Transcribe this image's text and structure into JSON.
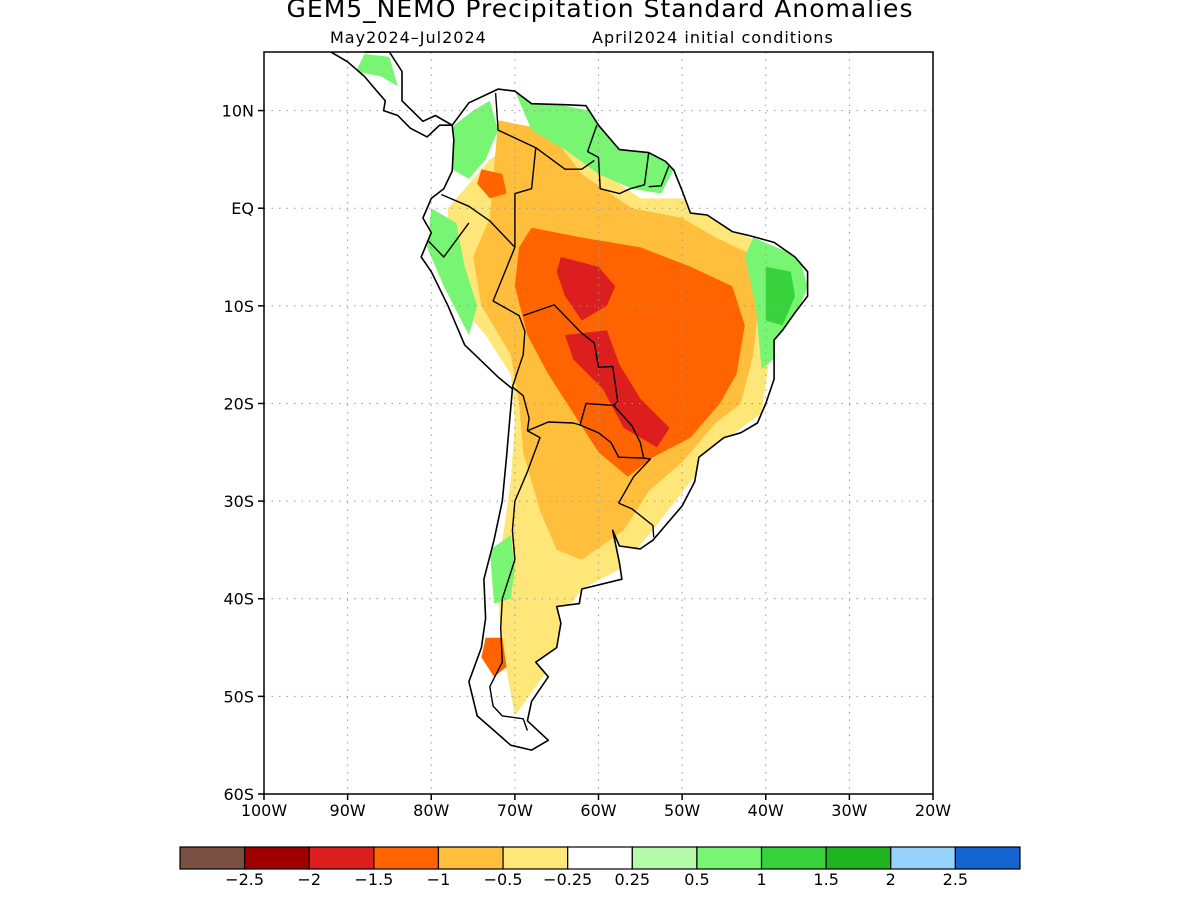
{
  "title": "GEM5_NEMO Precipitation Standard Anomalies",
  "subtitle_left": "May2024–Jul2024",
  "subtitle_right": "April2024 initial conditions",
  "lat_ticks": [
    {
      "label": "10N",
      "lat": 10
    },
    {
      "label": "EQ",
      "lat": 0
    },
    {
      "label": "10S",
      "lat": -10
    },
    {
      "label": "20S",
      "lat": -20
    },
    {
      "label": "30S",
      "lat": -30
    },
    {
      "label": "40S",
      "lat": -40
    },
    {
      "label": "50S",
      "lat": -50
    },
    {
      "label": "60S",
      "lat": -60
    }
  ],
  "lon_ticks": [
    {
      "label": "100W",
      "lon": -100
    },
    {
      "label": "90W",
      "lon": -90
    },
    {
      "label": "80W",
      "lon": -80
    },
    {
      "label": "70W",
      "lon": -70
    },
    {
      "label": "60W",
      "lon": -60
    },
    {
      "label": "50W",
      "lon": -50
    },
    {
      "label": "40W",
      "lon": -40
    },
    {
      "label": "30W",
      "lon": -30
    },
    {
      "label": "20W",
      "lon": -20
    }
  ],
  "extent": {
    "lon_min": -100,
    "lon_max": -20,
    "lat_min": -60,
    "lat_max": 16
  },
  "colorbar": {
    "colors": [
      "#7a5042",
      "#a00000",
      "#dc1e1e",
      "#ff6400",
      "#ffbe3c",
      "#ffe678",
      "#ffffff",
      "#b4faaa",
      "#78f573",
      "#37d23c",
      "#1eb41e",
      "#96d2fa",
      "#1464d2"
    ],
    "labels": [
      "−2.5",
      "−2",
      "−1.5",
      "−1",
      "−0.5",
      "−0.25",
      "0.25",
      "0.5",
      "1",
      "1.5",
      "2",
      "2.5"
    ]
  },
  "continent_outline": [
    [
      -77.5,
      8.5
    ],
    [
      -75.5,
      10.8
    ],
    [
      -72,
      12.2
    ],
    [
      -70,
      12
    ],
    [
      -68,
      10.7
    ],
    [
      -64,
      10.6
    ],
    [
      -61.5,
      10.5
    ],
    [
      -60,
      8.5
    ],
    [
      -57.5,
      6
    ],
    [
      -54,
      5.7
    ],
    [
      -52,
      4.8
    ],
    [
      -51,
      3.9
    ],
    [
      -50,
      1.8
    ],
    [
      -49,
      -0.5
    ],
    [
      -47,
      -0.7
    ],
    [
      -44,
      -2.4
    ],
    [
      -42,
      -2.8
    ],
    [
      -39,
      -3.5
    ],
    [
      -36.5,
      -5
    ],
    [
      -35,
      -6.5
    ],
    [
      -35,
      -9
    ],
    [
      -36.5,
      -10.7
    ],
    [
      -38,
      -12.5
    ],
    [
      -39,
      -13.5
    ],
    [
      -39,
      -17.5
    ],
    [
      -40,
      -20
    ],
    [
      -41,
      -22
    ],
    [
      -43,
      -23
    ],
    [
      -45,
      -23.5
    ],
    [
      -48,
      -25.5
    ],
    [
      -48.5,
      -28
    ],
    [
      -50,
      -30.5
    ],
    [
      -52,
      -32.5
    ],
    [
      -53.5,
      -34
    ],
    [
      -55,
      -34.9
    ],
    [
      -57.5,
      -34.6
    ],
    [
      -58.3,
      -33
    ],
    [
      -57.5,
      -36.3
    ],
    [
      -57.2,
      -38
    ],
    [
      -62,
      -39
    ],
    [
      -62.3,
      -40.5
    ],
    [
      -65,
      -40.8
    ],
    [
      -64.5,
      -42.5
    ],
    [
      -65,
      -45
    ],
    [
      -67.5,
      -46.5
    ],
    [
      -66,
      -48
    ],
    [
      -68,
      -50.5
    ],
    [
      -68.5,
      -52.5
    ],
    [
      -66,
      -54.5
    ],
    [
      -68,
      -55.5
    ],
    [
      -70.5,
      -55
    ],
    [
      -72.5,
      -53.5
    ],
    [
      -74.5,
      -52
    ],
    [
      -75.5,
      -48.5
    ],
    [
      -74,
      -45
    ],
    [
      -73.5,
      -42
    ],
    [
      -73.7,
      -38
    ],
    [
      -72.5,
      -34
    ],
    [
      -71.5,
      -30
    ],
    [
      -71,
      -25.5
    ],
    [
      -70.3,
      -18.5
    ],
    [
      -72,
      -17.3
    ],
    [
      -76,
      -14
    ],
    [
      -78,
      -10
    ],
    [
      -80,
      -6.5
    ],
    [
      -81.2,
      -5
    ],
    [
      -80,
      -2.5
    ],
    [
      -81,
      -1
    ],
    [
      -80,
      1
    ],
    [
      -78.5,
      2
    ],
    [
      -77.5,
      3.8
    ],
    [
      -77.3,
      7
    ],
    [
      -77.5,
      8.5
    ]
  ],
  "central_america_outline": [
    [
      -92,
      16
    ],
    [
      -90,
      15
    ],
    [
      -88,
      13.5
    ],
    [
      -86.5,
      12
    ],
    [
      -85.5,
      11
    ],
    [
      -85.7,
      10
    ],
    [
      -84,
      9.5
    ],
    [
      -82.5,
      8.2
    ],
    [
      -80.5,
      7.3
    ],
    [
      -79,
      8.5
    ],
    [
      -77.5,
      8.5
    ],
    [
      -79.5,
      9.5
    ],
    [
      -81,
      8.9
    ],
    [
      -83.5,
      11
    ],
    [
      -83.5,
      14
    ],
    [
      -85,
      16
    ],
    [
      -88,
      16
    ]
  ],
  "country_borders": [
    [
      [
        -72.3,
        11.8
      ],
      [
        -72,
        8
      ],
      [
        -67.5,
        6.2
      ],
      [
        -68,
        2
      ],
      [
        -70,
        1.5
      ],
      [
        -70,
        -0.2
      ],
      [
        -70,
        -4
      ]
    ],
    [
      [
        -78.8,
        1.4
      ],
      [
        -75.5,
        0.2
      ],
      [
        -73,
        -1.3
      ],
      [
        -70,
        -4
      ]
    ],
    [
      [
        -80.3,
        -3.4
      ],
      [
        -78.5,
        -5
      ],
      [
        -75.5,
        -1.5
      ]
    ],
    [
      [
        -70,
        -4
      ],
      [
        -72.6,
        -9.5
      ],
      [
        -69.5,
        -11
      ],
      [
        -68.8,
        -12.6
      ],
      [
        -69,
        -15
      ],
      [
        -70.3,
        -18.3
      ]
    ],
    [
      [
        -60.2,
        8.5
      ],
      [
        -61.3,
        5.8
      ],
      [
        -60,
        5.2
      ],
      [
        -59.8,
        2
      ],
      [
        -57.5,
        1.5
      ],
      [
        -56.2,
        2
      ],
      [
        -54.5,
        2.4
      ],
      [
        -54,
        5.7
      ]
    ],
    [
      [
        -67.5,
        6.2
      ],
      [
        -64,
        4
      ],
      [
        -62,
        4
      ],
      [
        -60.5,
        4.9
      ]
    ],
    [
      [
        -51.6,
        4.3
      ],
      [
        -52.5,
        2.3
      ],
      [
        -54,
        2.2
      ]
    ],
    [
      [
        -69,
        -11
      ],
      [
        -65.3,
        -9.9
      ],
      [
        -62,
        -12.8
      ],
      [
        -60.5,
        -13.8
      ],
      [
        -60,
        -16.3
      ],
      [
        -58.3,
        -16.2
      ],
      [
        -57.7,
        -19.8
      ],
      [
        -58.2,
        -20.2
      ]
    ],
    [
      [
        -68.5,
        -22.8
      ],
      [
        -66,
        -21.9
      ],
      [
        -63,
        -22
      ],
      [
        -62.2,
        -22.2
      ],
      [
        -61.5,
        -20
      ],
      [
        -58.2,
        -20.2
      ]
    ],
    [
      [
        -70.3,
        -18.3
      ],
      [
        -69,
        -19.2
      ],
      [
        -68.3,
        -21.5
      ],
      [
        -68.5,
        -22.8
      ],
      [
        -67,
        -23.5
      ],
      [
        -68.5,
        -27
      ],
      [
        -70,
        -30
      ],
      [
        -70.3,
        -33
      ],
      [
        -70,
        -36
      ],
      [
        -71.5,
        -40
      ],
      [
        -71.7,
        -43
      ],
      [
        -71.5,
        -46.5
      ],
      [
        -73,
        -49
      ],
      [
        -72.6,
        -51
      ],
      [
        -71.5,
        -52
      ],
      [
        -69,
        -52.3
      ],
      [
        -68.5,
        -53.5
      ]
    ],
    [
      [
        -62.2,
        -22.2
      ],
      [
        -60,
        -23
      ],
      [
        -58.5,
        -24
      ],
      [
        -57.6,
        -25.5
      ],
      [
        -54.6,
        -25.6
      ],
      [
        -55,
        -24
      ],
      [
        -56,
        -22.3
      ],
      [
        -58.2,
        -20.2
      ]
    ],
    [
      [
        -57.6,
        -30.2
      ],
      [
        -56,
        -30.8
      ],
      [
        -53.5,
        -32.5
      ],
      [
        -53.4,
        -33.7
      ]
    ],
    [
      [
        -57.6,
        -30.2
      ],
      [
        -55.8,
        -27.5
      ],
      [
        -53.8,
        -25.7
      ],
      [
        -54.6,
        -25.6
      ]
    ]
  ],
  "anomaly_regions": [
    {
      "color": "#ffe678",
      "points": [
        [
          -73,
          5
        ],
        [
          -66,
          9
        ],
        [
          -60,
          4
        ],
        [
          -55,
          1
        ],
        [
          -48,
          1
        ],
        [
          -44,
          -2
        ],
        [
          -38,
          -5
        ],
        [
          -37.5,
          -10
        ],
        [
          -39.5,
          -15
        ],
        [
          -40.5,
          -21
        ],
        [
          -44.5,
          -23.5
        ],
        [
          -49,
          -28
        ],
        [
          -54,
          -33.5
        ],
        [
          -57.5,
          -37
        ],
        [
          -62,
          -39
        ],
        [
          -64.5,
          -42
        ],
        [
          -65,
          -46
        ],
        [
          -67.5,
          -49
        ],
        [
          -70,
          -52
        ],
        [
          -71.5,
          -45
        ],
        [
          -72,
          -40
        ],
        [
          -71.5,
          -34
        ],
        [
          -70.5,
          -28
        ],
        [
          -70,
          -22
        ],
        [
          -70.5,
          -17
        ],
        [
          -73.5,
          -13
        ],
        [
          -76.5,
          -10
        ],
        [
          -78,
          -5
        ],
        [
          -78,
          0
        ]
      ]
    },
    {
      "color": "#ffbe3c",
      "points": [
        [
          -72,
          9
        ],
        [
          -66,
          8
        ],
        [
          -62,
          3.5
        ],
        [
          -56,
          0
        ],
        [
          -50,
          -1
        ],
        [
          -46,
          -3
        ],
        [
          -41,
          -5
        ],
        [
          -41,
          -11
        ],
        [
          -41.5,
          -15
        ],
        [
          -43,
          -20
        ],
        [
          -46,
          -22
        ],
        [
          -50,
          -26
        ],
        [
          -54,
          -29
        ],
        [
          -57,
          -33
        ],
        [
          -62,
          -36
        ],
        [
          -65,
          -35
        ],
        [
          -67,
          -31
        ],
        [
          -69,
          -25
        ],
        [
          -69.5,
          -20
        ],
        [
          -70.5,
          -15
        ],
        [
          -74,
          -10
        ],
        [
          -75,
          -5
        ],
        [
          -73,
          -1
        ],
        [
          -72.5,
          4
        ]
      ]
    },
    {
      "color": "#ff6400",
      "points": [
        [
          -68,
          -2
        ],
        [
          -62,
          -3
        ],
        [
          -55,
          -4
        ],
        [
          -49,
          -6
        ],
        [
          -44,
          -8
        ],
        [
          -42.5,
          -12
        ],
        [
          -43.5,
          -17
        ],
        [
          -45.5,
          -20
        ],
        [
          -49,
          -23.5
        ],
        [
          -53.5,
          -25.5
        ],
        [
          -56.5,
          -27.5
        ],
        [
          -60,
          -25
        ],
        [
          -63,
          -21
        ],
        [
          -66,
          -17
        ],
        [
          -68.5,
          -13
        ],
        [
          -70,
          -8
        ],
        [
          -69.5,
          -4
        ]
      ]
    },
    {
      "color": "#dc1e1e",
      "points": [
        [
          -64.5,
          -5
        ],
        [
          -60,
          -6
        ],
        [
          -58,
          -8
        ],
        [
          -59,
          -10
        ],
        [
          -62,
          -11.5
        ],
        [
          -64,
          -9
        ],
        [
          -65,
          -6.5
        ]
      ]
    },
    {
      "color": "#dc1e1e",
      "points": [
        [
          -64,
          -13
        ],
        [
          -59,
          -12.5
        ],
        [
          -57.5,
          -16
        ],
        [
          -55,
          -19.5
        ],
        [
          -51.5,
          -22.5
        ],
        [
          -53,
          -24.5
        ],
        [
          -57,
          -22.5
        ],
        [
          -59.5,
          -18.5
        ],
        [
          -63,
          -15.5
        ]
      ]
    },
    {
      "color": "#ff6400",
      "points": [
        [
          -74,
          4
        ],
        [
          -71.5,
          3.5
        ],
        [
          -71,
          1.5
        ],
        [
          -73,
          1
        ],
        [
          -74.5,
          2.5
        ]
      ]
    },
    {
      "color": "#78f573",
      "points": [
        [
          -78,
          8
        ],
        [
          -75,
          10
        ],
        [
          -73,
          11
        ],
        [
          -72,
          8
        ],
        [
          -73.5,
          5
        ],
        [
          -75.5,
          3
        ],
        [
          -77.5,
          4
        ]
      ]
    },
    {
      "color": "#78f573",
      "points": [
        [
          -80,
          0
        ],
        [
          -77,
          -1.5
        ],
        [
          -76,
          -6
        ],
        [
          -74.5,
          -10
        ],
        [
          -75.5,
          -13
        ],
        [
          -78.5,
          -8
        ],
        [
          -80.5,
          -4
        ]
      ]
    },
    {
      "color": "#78f573",
      "points": [
        [
          -70,
          12
        ],
        [
          -64,
          10.5
        ],
        [
          -61,
          10
        ],
        [
          -58,
          6.5
        ],
        [
          -54,
          6
        ],
        [
          -51,
          4
        ],
        [
          -52.5,
          1.5
        ],
        [
          -56,
          2
        ],
        [
          -60,
          3.5
        ],
        [
          -64,
          6
        ],
        [
          -68,
          8
        ]
      ]
    },
    {
      "color": "#78f573",
      "points": [
        [
          -41.5,
          -3
        ],
        [
          -36,
          -5
        ],
        [
          -35,
          -8
        ],
        [
          -36.5,
          -11.5
        ],
        [
          -38.5,
          -15
        ],
        [
          -40.5,
          -16.5
        ],
        [
          -41.2,
          -10
        ],
        [
          -42.5,
          -5
        ]
      ]
    },
    {
      "color": "#37d23c",
      "points": [
        [
          -40,
          -6
        ],
        [
          -37,
          -6.5
        ],
        [
          -36.5,
          -9
        ],
        [
          -38,
          -12
        ],
        [
          -40,
          -11.5
        ]
      ]
    },
    {
      "color": "#78f573",
      "points": [
        [
          -73,
          -35
        ],
        [
          -70.5,
          -33.5
        ],
        [
          -70,
          -37
        ],
        [
          -70.5,
          -40
        ],
        [
          -72.5,
          -40.5
        ]
      ]
    },
    {
      "color": "#78f573",
      "points": [
        [
          -89,
          14
        ],
        [
          -86,
          13.5
        ],
        [
          -84,
          12.5
        ],
        [
          -85,
          15.5
        ],
        [
          -88,
          15.8
        ]
      ]
    },
    {
      "color": "#ff6400",
      "points": [
        [
          -73.5,
          -44
        ],
        [
          -71.5,
          -44
        ],
        [
          -71,
          -47
        ],
        [
          -72.5,
          -48
        ],
        [
          -74,
          -46
        ]
      ]
    }
  ]
}
